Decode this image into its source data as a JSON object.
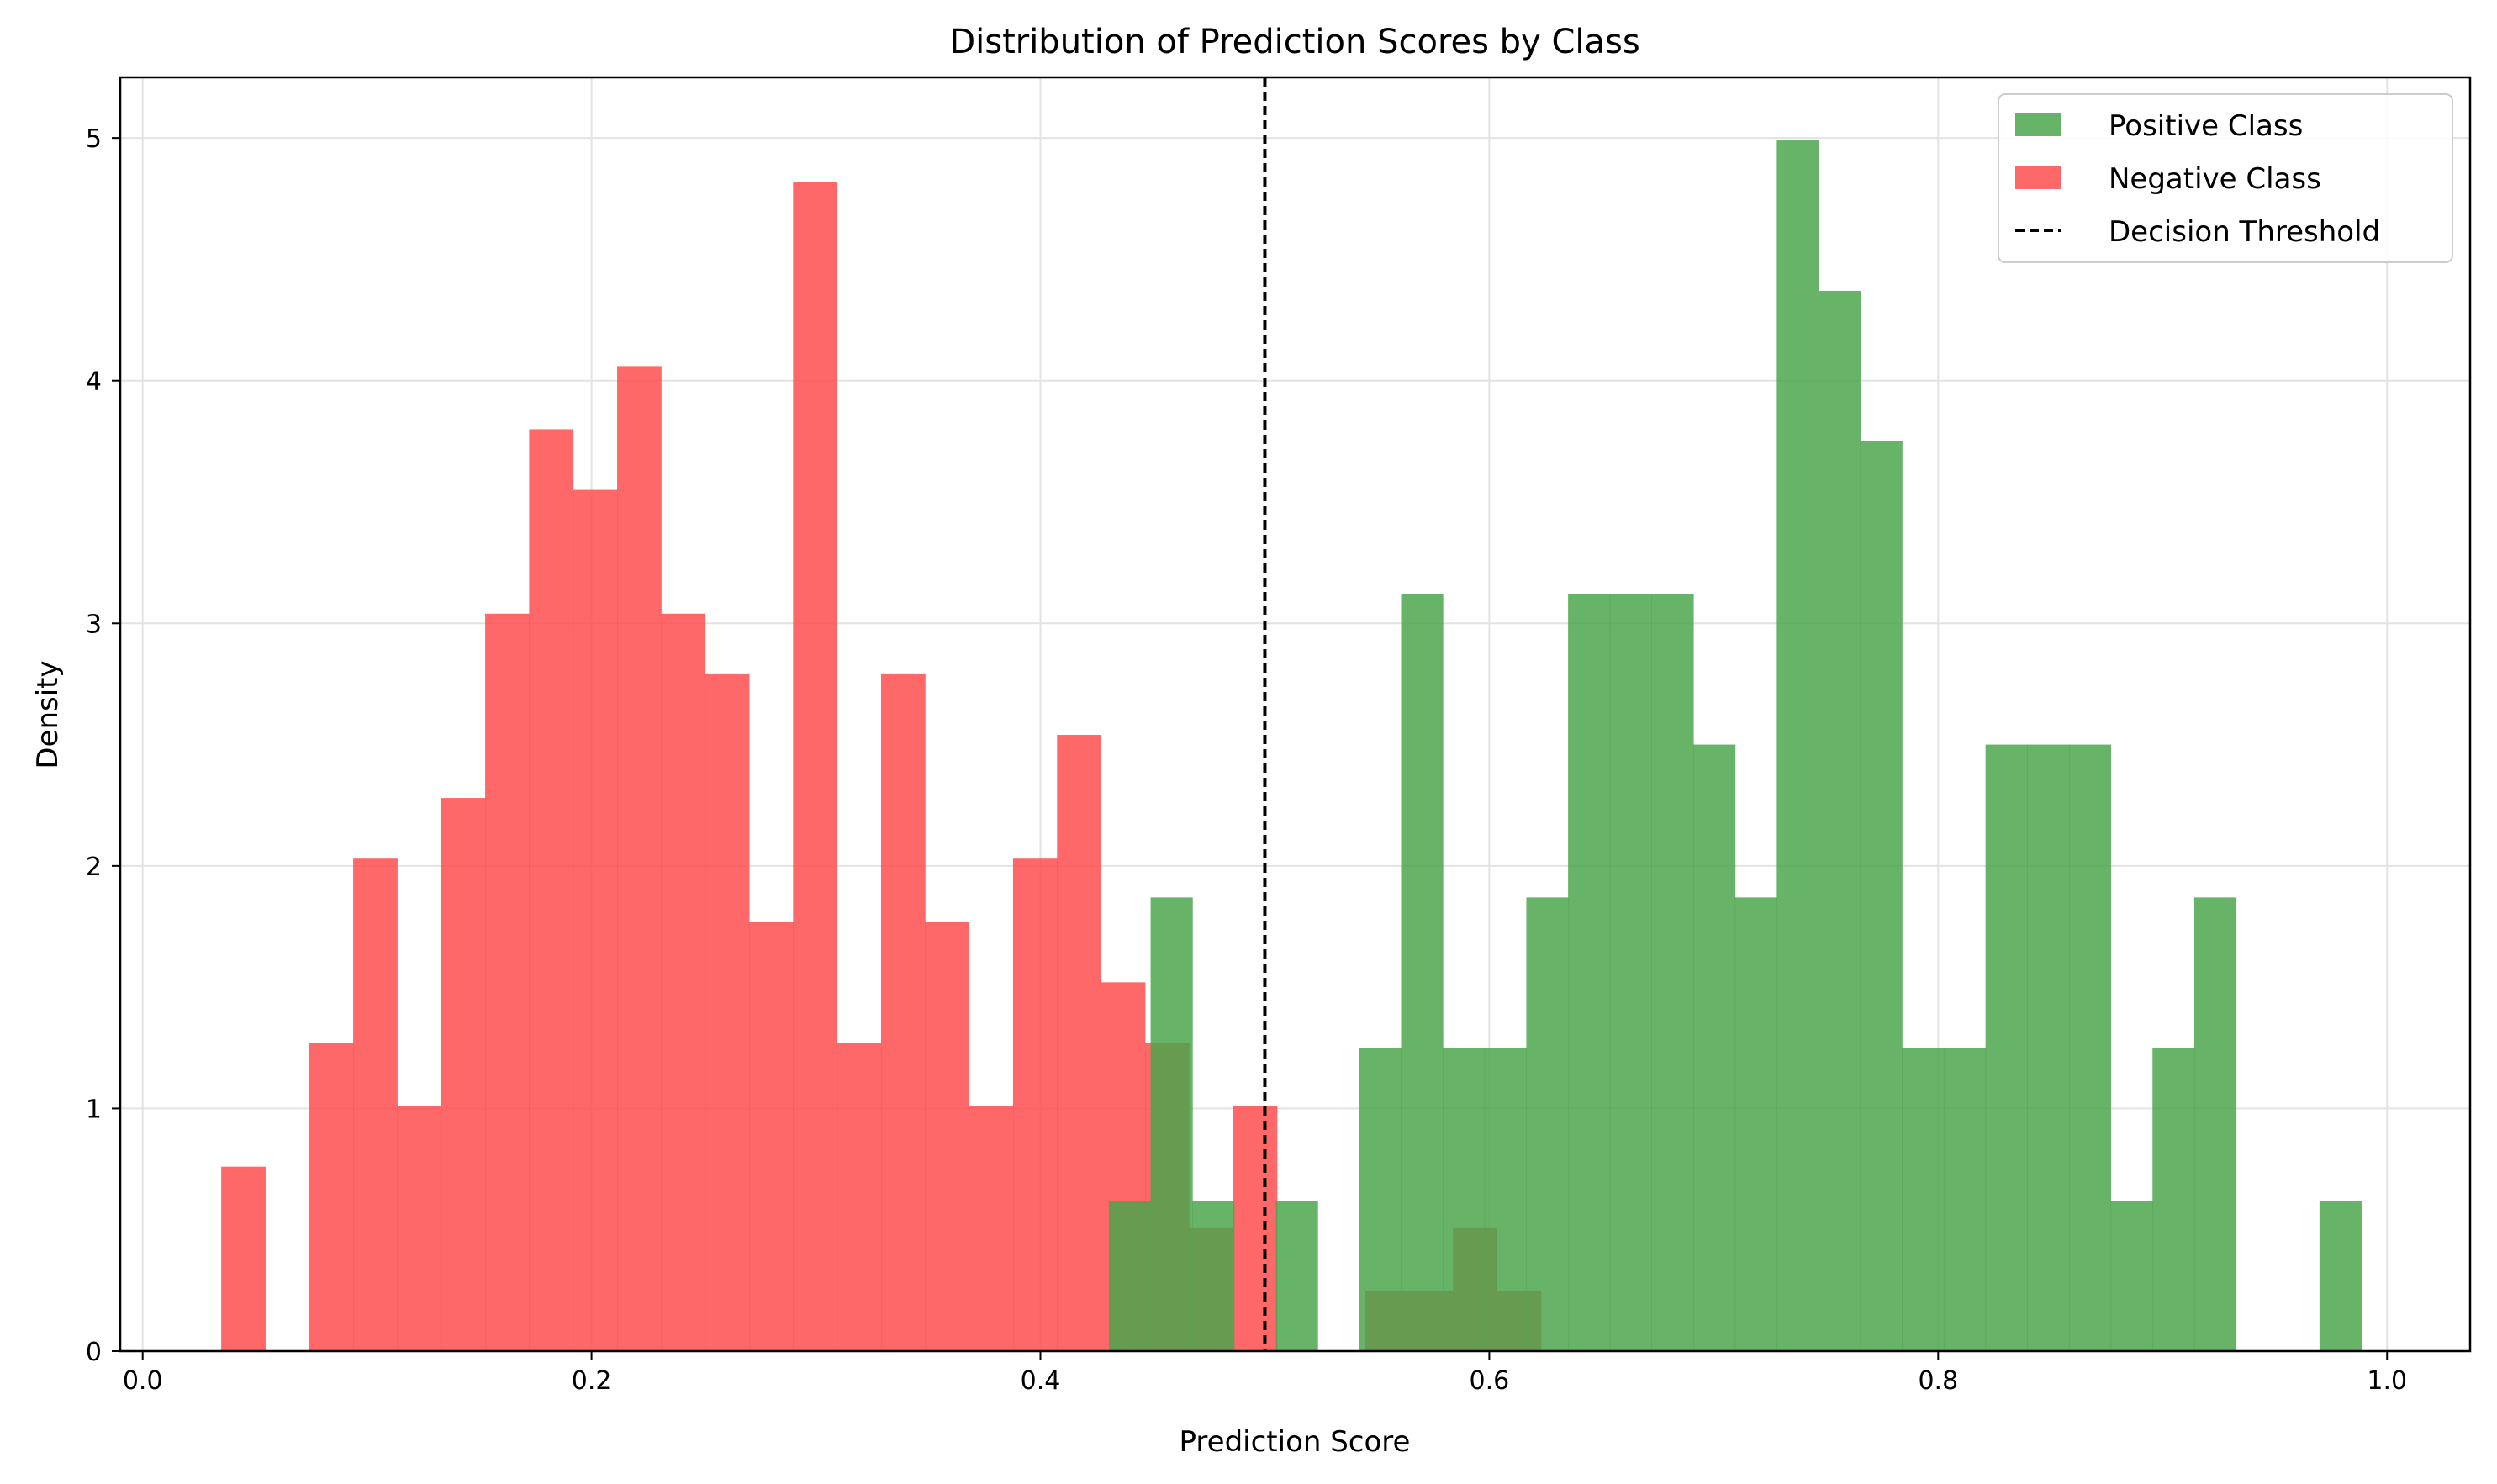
{
  "chart_data": {
    "type": "bar",
    "title": "Distribution of Prediction Scores by Class",
    "xlabel": "Prediction Score",
    "ylabel": "Density",
    "xlim": [
      -0.01,
      1.037
    ],
    "ylim": [
      0,
      5.25
    ],
    "xticks": [
      0.0,
      0.2,
      0.4,
      0.6,
      0.8,
      1.0
    ],
    "xtick_labels": [
      "0.0",
      "0.2",
      "0.4",
      "0.6",
      "0.8",
      "1.0"
    ],
    "yticks": [
      0,
      1,
      2,
      3,
      4,
      5
    ],
    "ytick_labels": [
      "0",
      "1",
      "2",
      "3",
      "4",
      "5"
    ],
    "grid": true,
    "legend_position": "top-right",
    "threshold": {
      "name": "Decision Threshold",
      "x": 0.5,
      "color": "#000000",
      "style": "dashed"
    },
    "series": [
      {
        "name": "Positive Class",
        "color": "#4ca64c",
        "opacity": 0.85,
        "bins": [
          {
            "x0": 0.4305,
            "x1": 0.4491,
            "value": 0.62
          },
          {
            "x0": 0.4491,
            "x1": 0.4677,
            "value": 1.87
          },
          {
            "x0": 0.4677,
            "x1": 0.4863,
            "value": 0.62
          },
          {
            "x0": 0.5049,
            "x1": 0.5235,
            "value": 0.62
          },
          {
            "x0": 0.5421,
            "x1": 0.5607,
            "value": 1.25
          },
          {
            "x0": 0.5607,
            "x1": 0.5793,
            "value": 3.12
          },
          {
            "x0": 0.5793,
            "x1": 0.5979,
            "value": 1.25
          },
          {
            "x0": 0.5979,
            "x1": 0.6165,
            "value": 1.25
          },
          {
            "x0": 0.6165,
            "x1": 0.6351,
            "value": 1.87
          },
          {
            "x0": 0.6351,
            "x1": 0.6537,
            "value": 3.12
          },
          {
            "x0": 0.6537,
            "x1": 0.6723,
            "value": 3.12
          },
          {
            "x0": 0.6723,
            "x1": 0.6909,
            "value": 3.12
          },
          {
            "x0": 0.6909,
            "x1": 0.7095,
            "value": 2.5
          },
          {
            "x0": 0.7095,
            "x1": 0.7281,
            "value": 1.87
          },
          {
            "x0": 0.7281,
            "x1": 0.7467,
            "value": 4.99
          },
          {
            "x0": 0.7467,
            "x1": 0.7653,
            "value": 4.37
          },
          {
            "x0": 0.7653,
            "x1": 0.7839,
            "value": 3.75
          },
          {
            "x0": 0.7839,
            "x1": 0.8025,
            "value": 1.25
          },
          {
            "x0": 0.8025,
            "x1": 0.8211,
            "value": 1.25
          },
          {
            "x0": 0.8211,
            "x1": 0.8397,
            "value": 2.5
          },
          {
            "x0": 0.8397,
            "x1": 0.8583,
            "value": 2.5
          },
          {
            "x0": 0.8583,
            "x1": 0.8769,
            "value": 2.5
          },
          {
            "x0": 0.8769,
            "x1": 0.8955,
            "value": 0.62
          },
          {
            "x0": 0.8955,
            "x1": 0.9141,
            "value": 1.25
          },
          {
            "x0": 0.9141,
            "x1": 0.9327,
            "value": 1.87
          },
          {
            "x0": 0.9699,
            "x1": 0.9885,
            "value": 0.62
          }
        ]
      },
      {
        "name": "Negative Class",
        "color": "#ff4d4d",
        "opacity": 0.85,
        "bins": [
          {
            "x0": 0.035,
            "x1": 0.0546,
            "value": 0.76
          },
          {
            "x0": 0.0742,
            "x1": 0.0938,
            "value": 1.27
          },
          {
            "x0": 0.0938,
            "x1": 0.1134,
            "value": 2.03
          },
          {
            "x0": 0.1134,
            "x1": 0.133,
            "value": 1.01
          },
          {
            "x0": 0.133,
            "x1": 0.1526,
            "value": 2.28
          },
          {
            "x0": 0.1526,
            "x1": 0.1722,
            "value": 3.04
          },
          {
            "x0": 0.1722,
            "x1": 0.1918,
            "value": 3.8
          },
          {
            "x0": 0.1918,
            "x1": 0.2114,
            "value": 3.55
          },
          {
            "x0": 0.2114,
            "x1": 0.231,
            "value": 4.06
          },
          {
            "x0": 0.231,
            "x1": 0.2506,
            "value": 3.04
          },
          {
            "x0": 0.2506,
            "x1": 0.2702,
            "value": 2.79
          },
          {
            "x0": 0.2702,
            "x1": 0.2898,
            "value": 1.77
          },
          {
            "x0": 0.2898,
            "x1": 0.3094,
            "value": 4.82
          },
          {
            "x0": 0.3094,
            "x1": 0.329,
            "value": 1.27
          },
          {
            "x0": 0.329,
            "x1": 0.3486,
            "value": 2.79
          },
          {
            "x0": 0.3486,
            "x1": 0.3682,
            "value": 1.77
          },
          {
            "x0": 0.3682,
            "x1": 0.3878,
            "value": 1.01
          },
          {
            "x0": 0.3878,
            "x1": 0.4074,
            "value": 2.03
          },
          {
            "x0": 0.4074,
            "x1": 0.427,
            "value": 2.54
          },
          {
            "x0": 0.427,
            "x1": 0.4466,
            "value": 1.52
          },
          {
            "x0": 0.4466,
            "x1": 0.4662,
            "value": 1.27
          },
          {
            "x0": 0.4662,
            "x1": 0.4858,
            "value": 0.51
          },
          {
            "x0": 0.4858,
            "x1": 0.5054,
            "value": 1.01
          },
          {
            "x0": 0.5446,
            "x1": 0.5642,
            "value": 0.25
          },
          {
            "x0": 0.5642,
            "x1": 0.5838,
            "value": 0.25
          },
          {
            "x0": 0.5838,
            "x1": 0.6034,
            "value": 0.51
          },
          {
            "x0": 0.6034,
            "x1": 0.623,
            "value": 0.25
          }
        ]
      }
    ]
  }
}
